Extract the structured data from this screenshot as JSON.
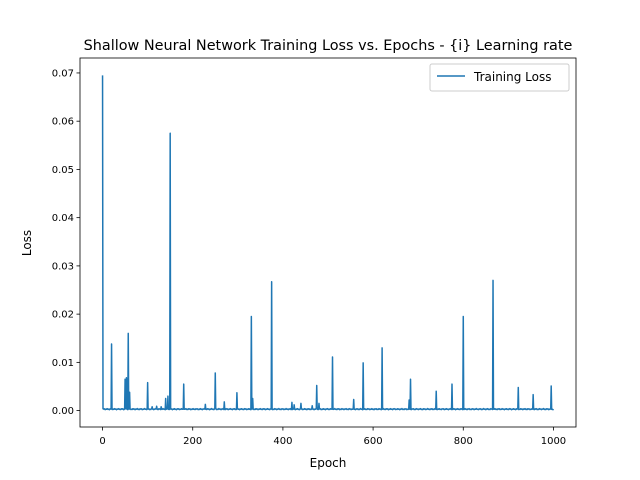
{
  "chart_data": {
    "type": "line",
    "title": "Shallow Neural Network Training Loss vs. Epochs - {i} Learning rate",
    "xlabel": "Epoch",
    "ylabel": "Loss",
    "xlim": [
      -50,
      1050
    ],
    "ylim": [
      -0.0034,
      0.0731
    ],
    "xticks": [
      0,
      200,
      400,
      600,
      800,
      1000
    ],
    "xtick_labels": [
      "0",
      "200",
      "400",
      "600",
      "800",
      "1000"
    ],
    "yticks": [
      0.0,
      0.01,
      0.02,
      0.03,
      0.04,
      0.05,
      0.06,
      0.07
    ],
    "ytick_labels": [
      "0.00",
      "0.01",
      "0.02",
      "0.03",
      "0.04",
      "0.05",
      "0.06",
      "0.07"
    ],
    "grid": false,
    "legend_position": "top-right",
    "series": [
      {
        "name": "Training Loss",
        "color": "#1f77b4",
        "baseline": 0.0003,
        "x_range": [
          0,
          1000
        ],
        "spikes": [
          [
            0,
            0.0695
          ],
          [
            20,
            0.0138
          ],
          [
            50,
            0.0065
          ],
          [
            53,
            0.0068
          ],
          [
            57,
            0.016
          ],
          [
            60,
            0.0038
          ],
          [
            100,
            0.0058
          ],
          [
            110,
            0.0008
          ],
          [
            120,
            0.0009
          ],
          [
            130,
            0.0008
          ],
          [
            140,
            0.0025
          ],
          [
            145,
            0.003
          ],
          [
            150,
            0.0575
          ],
          [
            180,
            0.0055
          ],
          [
            228,
            0.0013
          ],
          [
            250,
            0.0078
          ],
          [
            270,
            0.0018
          ],
          [
            298,
            0.0037
          ],
          [
            330,
            0.0195
          ],
          [
            333,
            0.0025
          ],
          [
            375,
            0.0267
          ],
          [
            420,
            0.0017
          ],
          [
            425,
            0.0012
          ],
          [
            440,
            0.0015
          ],
          [
            465,
            0.001
          ],
          [
            475,
            0.0052
          ],
          [
            480,
            0.0015
          ],
          [
            510,
            0.0111
          ],
          [
            557,
            0.0023
          ],
          [
            578,
            0.0099
          ],
          [
            620,
            0.013
          ],
          [
            680,
            0.0022
          ],
          [
            683,
            0.0065
          ],
          [
            740,
            0.004
          ],
          [
            775,
            0.0055
          ],
          [
            800,
            0.0195
          ],
          [
            866,
            0.027
          ],
          [
            922,
            0.0048
          ],
          [
            955,
            0.0033
          ],
          [
            995,
            0.0051
          ]
        ]
      }
    ]
  }
}
